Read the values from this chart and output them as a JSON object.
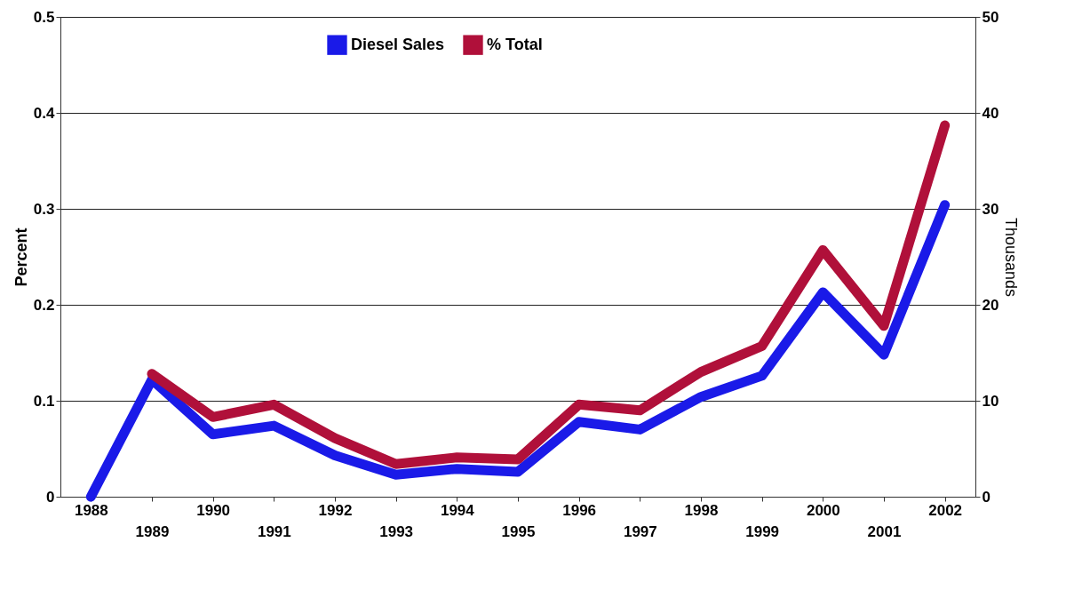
{
  "chart_data": {
    "type": "line",
    "categories": [
      "1988",
      "1989",
      "1990",
      "1991",
      "1992",
      "1993",
      "1994",
      "1995",
      "1996",
      "1997",
      "1998",
      "1999",
      "2000",
      "2001",
      "2002"
    ],
    "series": [
      {
        "name": "Diesel Sales",
        "color": "#1a1ae8",
        "axis": "y2",
        "values": [
          0,
          12.2,
          6.5,
          7.4,
          4.3,
          2.3,
          2.9,
          2.6,
          7.8,
          7.0,
          10.4,
          12.6,
          21.3,
          14.8,
          30.4
        ]
      },
      {
        "name": "% Total",
        "color": "#b0103a",
        "values": [
          null,
          0.128,
          0.083,
          0.096,
          0.061,
          0.034,
          0.041,
          0.039,
          0.096,
          0.09,
          0.13,
          0.157,
          0.257,
          0.178,
          0.387
        ]
      }
    ],
    "ylabel": "Percent",
    "y2label": "Thousands",
    "ylim": [
      0,
      0.5
    ],
    "yticks": [
      0,
      0.1,
      0.2,
      0.3,
      0.4,
      0.5
    ],
    "y2lim": [
      0,
      50
    ],
    "y2ticks": [
      0,
      10,
      20,
      30,
      40,
      50
    ],
    "grid": "y",
    "legend": "top",
    "line_style": "solid"
  }
}
